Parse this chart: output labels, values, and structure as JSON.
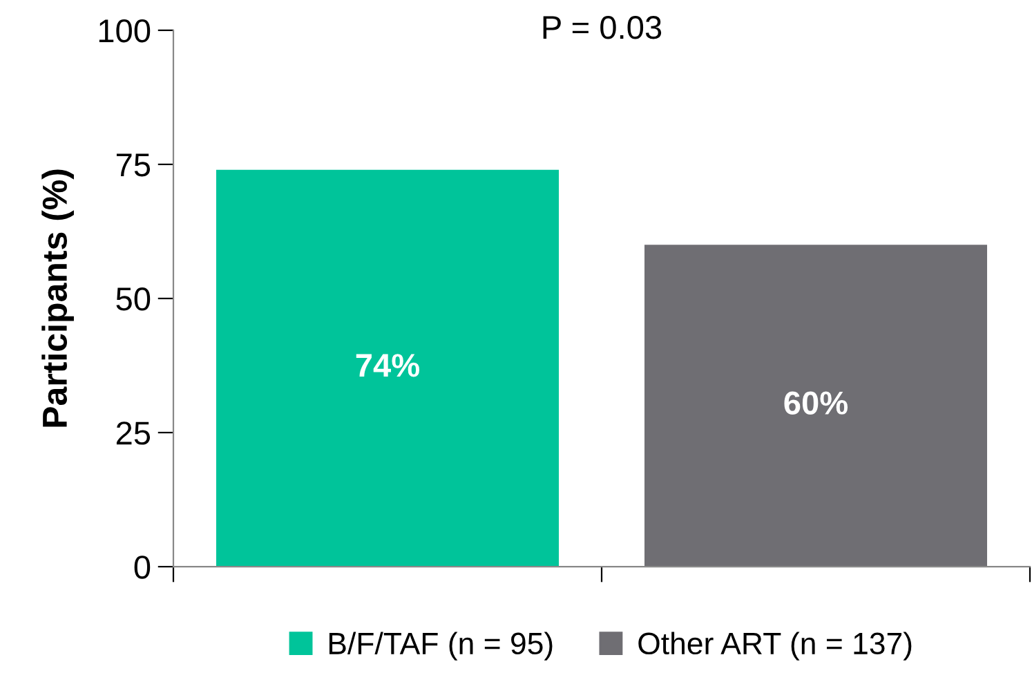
{
  "chart_data": {
    "type": "bar",
    "ylabel": "Participants (%)",
    "categories": [
      null,
      null
    ],
    "series": [
      {
        "name": "B/F/TAF (n = 95)",
        "color": "#00c49a",
        "values": [
          74,
          null
        ],
        "value_labels": [
          "74%",
          null
        ]
      },
      {
        "name": "Other ART (n = 137)",
        "color": "#6f6e73",
        "values": [
          null,
          60
        ],
        "value_labels": [
          null,
          "60%"
        ]
      }
    ],
    "ylim": [
      0,
      100
    ],
    "yticks": [
      0,
      25,
      50,
      75,
      100
    ],
    "grid": false,
    "legend": "bottom",
    "annotations": [
      "P = 0.03"
    ]
  }
}
